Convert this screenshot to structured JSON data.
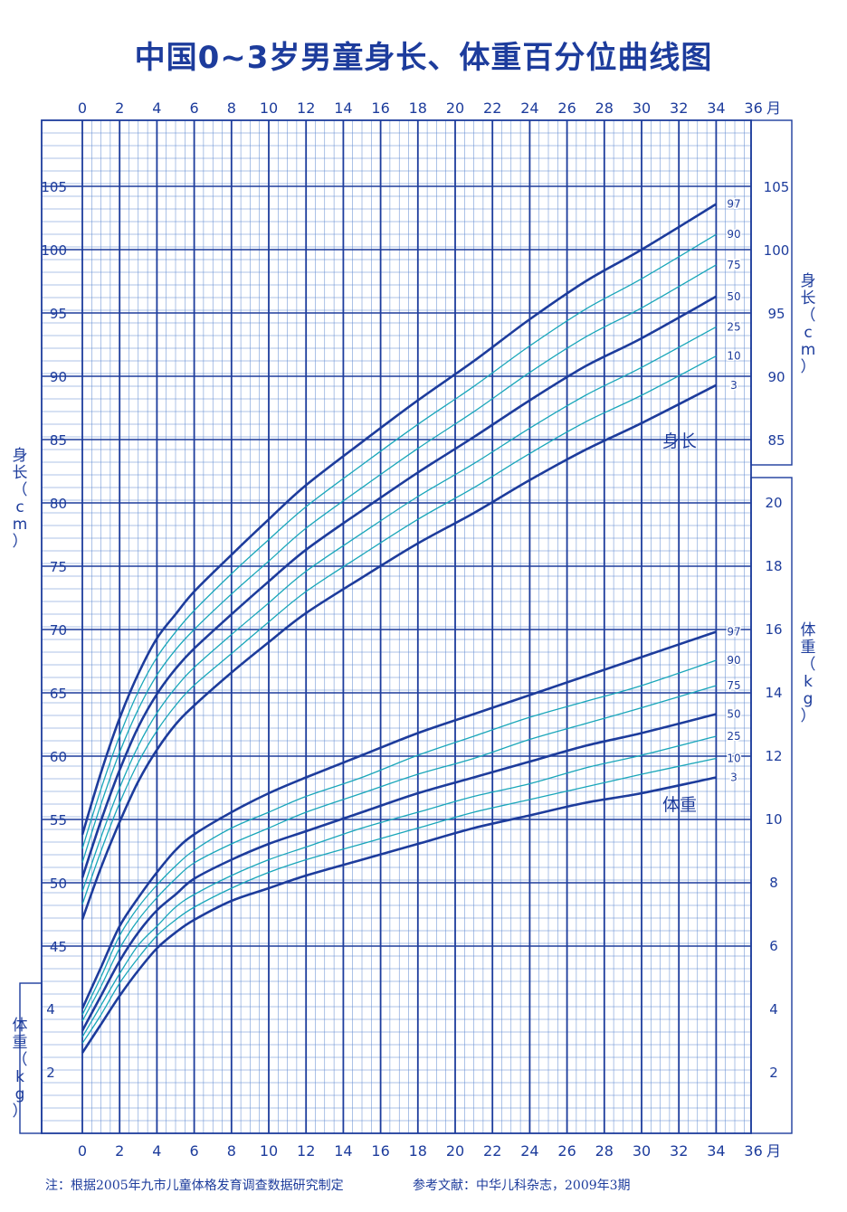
{
  "title": "中国0~3岁男童身长、体重百分位曲线图",
  "footnote": "注：根据2005年九市儿童体格发育调查数据研究制定",
  "reference": "参考文献：中华儿科杂志，2009年3期",
  "axis_labels": {
    "length_left": "身长（cm）",
    "weight_left": "体重（kg）",
    "length_right": "身长（cm）",
    "weight_right": "体重（kg）",
    "month_unit": "月"
  },
  "chart_labels": {
    "length": "身长",
    "weight": "体重"
  },
  "colors": {
    "major": "#1d3c9c",
    "minor": "#5a86cf",
    "teal": "#19a6b9",
    "text": "#1d3c9c",
    "background": "#ffffff"
  },
  "chart_data": {
    "type": "line",
    "x": [
      0,
      1,
      2,
      3,
      4,
      5,
      6,
      8,
      10,
      12,
      15,
      18,
      21,
      24,
      27,
      30,
      34
    ],
    "xlabel": "月",
    "xlim": [
      0,
      36
    ],
    "x_ticks": [
      0,
      2,
      4,
      6,
      8,
      10,
      12,
      14,
      16,
      18,
      20,
      22,
      24,
      26,
      28,
      30,
      32,
      34,
      36
    ],
    "length": {
      "ylabel": "身长（cm）",
      "ylim": [
        42,
        109
      ],
      "ticks_left": [
        45,
        50,
        55,
        60,
        65,
        70,
        75,
        80,
        85,
        90,
        95,
        100,
        105
      ],
      "ticks_right": [
        85,
        90,
        95,
        100,
        105
      ],
      "series": [
        {
          "name": "3",
          "values": [
            47.1,
            51.2,
            54.8,
            58.0,
            60.5,
            62.5,
            64.0,
            66.6,
            69.0,
            71.3,
            74.1,
            76.8,
            79.2,
            81.8,
            84.2,
            86.3,
            89.3
          ]
        },
        {
          "name": "10",
          "values": [
            48.3,
            52.5,
            56.3,
            59.5,
            62.0,
            64.0,
            65.6,
            68.1,
            70.6,
            73.0,
            75.9,
            78.7,
            81.2,
            83.9,
            86.4,
            88.5,
            91.6
          ]
        },
        {
          "name": "25",
          "values": [
            49.3,
            53.6,
            57.5,
            60.8,
            63.4,
            65.4,
            67.0,
            69.6,
            72.1,
            74.6,
            77.6,
            80.5,
            83.1,
            85.9,
            88.5,
            90.7,
            93.9
          ]
        },
        {
          "name": "50",
          "values": [
            50.4,
            54.9,
            58.9,
            62.3,
            64.9,
            66.9,
            68.5,
            71.2,
            73.8,
            76.3,
            79.4,
            82.4,
            85.2,
            88.1,
            90.8,
            93.0,
            96.3
          ]
        },
        {
          "name": "75",
          "values": [
            51.6,
            56.2,
            60.3,
            63.7,
            66.4,
            68.4,
            70.0,
            72.8,
            75.4,
            78.0,
            81.2,
            84.3,
            87.2,
            90.3,
            93.1,
            95.4,
            98.8
          ]
        },
        {
          "name": "90",
          "values": [
            52.7,
            57.4,
            61.6,
            65.1,
            67.8,
            69.8,
            71.5,
            74.4,
            77.1,
            79.7,
            83.0,
            86.2,
            89.2,
            92.4,
            95.3,
            97.7,
            101.2
          ]
        },
        {
          "name": "97",
          "values": [
            53.8,
            58.7,
            63.0,
            66.5,
            69.3,
            71.2,
            73.0,
            75.9,
            78.7,
            81.4,
            84.8,
            88.1,
            91.2,
            94.5,
            97.5,
            100.0,
            103.6
          ]
        }
      ]
    },
    "weight": {
      "ylabel": "体重（kg）",
      "ylim": [
        1,
        21
      ],
      "ticks_left": [
        2,
        4
      ],
      "ticks_right": [
        2,
        4,
        6,
        8,
        10,
        12,
        14,
        16,
        18,
        20
      ],
      "series": [
        {
          "name": "3",
          "values": [
            2.6,
            3.5,
            4.4,
            5.2,
            5.9,
            6.4,
            6.8,
            7.4,
            7.8,
            8.2,
            8.7,
            9.2,
            9.7,
            10.1,
            10.5,
            10.8,
            11.3
          ]
        },
        {
          "name": "10",
          "values": [
            2.9,
            3.8,
            4.8,
            5.6,
            6.3,
            6.8,
            7.2,
            7.8,
            8.3,
            8.7,
            9.2,
            9.7,
            10.2,
            10.6,
            11.0,
            11.4,
            11.9
          ]
        },
        {
          "name": "25",
          "values": [
            3.1,
            4.1,
            5.1,
            6.0,
            6.6,
            7.2,
            7.6,
            8.2,
            8.7,
            9.1,
            9.7,
            10.2,
            10.7,
            11.1,
            11.6,
            12.0,
            12.6
          ]
        },
        {
          "name": "50",
          "values": [
            3.3,
            4.4,
            5.5,
            6.4,
            7.1,
            7.6,
            8.1,
            8.7,
            9.2,
            9.6,
            10.2,
            10.8,
            11.3,
            11.8,
            12.3,
            12.7,
            13.3
          ]
        },
        {
          "name": "75",
          "values": [
            3.6,
            4.7,
            5.9,
            6.8,
            7.5,
            8.1,
            8.6,
            9.2,
            9.7,
            10.2,
            10.8,
            11.4,
            11.9,
            12.5,
            13.0,
            13.5,
            14.2
          ]
        },
        {
          "name": "90",
          "values": [
            3.8,
            5.0,
            6.3,
            7.2,
            7.9,
            8.5,
            9.0,
            9.7,
            10.2,
            10.7,
            11.3,
            12.0,
            12.6,
            13.2,
            13.7,
            14.2,
            15.0
          ]
        },
        {
          "name": "97",
          "values": [
            4.0,
            5.3,
            6.6,
            7.5,
            8.3,
            9.0,
            9.5,
            10.2,
            10.8,
            11.3,
            12.0,
            12.7,
            13.3,
            13.9,
            14.5,
            15.1,
            15.9
          ]
        }
      ]
    }
  }
}
